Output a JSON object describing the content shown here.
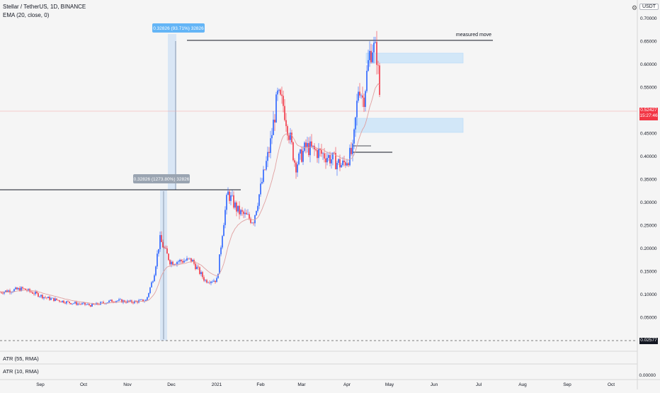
{
  "header": {
    "symbol_line": "Stellar / TetherUS, 1D, BINANCE",
    "ema_line": "EMA (20, close, 0)"
  },
  "toolbar": {
    "currency": "USDT",
    "settings_icon": "gear-icon"
  },
  "price_axis": {
    "ticks": [
      "0.70000",
      "0.65000",
      "0.60000",
      "0.55000",
      "0.50000",
      "0.45000",
      "0.40000",
      "0.35000",
      "0.30000",
      "0.25000",
      "0.20000",
      "0.15000",
      "0.10000",
      "0.05000"
    ],
    "last_price": "0.52427",
    "countdown": "15:27:46",
    "low_marker": "0.02577",
    "atr_zero": "0.00000"
  },
  "time_axis": {
    "labels": [
      "Sep",
      "Oct",
      "Nov",
      "Dec",
      "2021",
      "Feb",
      "Mar",
      "Apr",
      "May",
      "Jun",
      "Jul",
      "Aug",
      "Sep",
      "Oct"
    ]
  },
  "annotations": {
    "measure_top": "0.32826 (93.71%) 32826",
    "measure_bottom": "0.32826 (1273.80%) 32826",
    "measured_move": "measured move"
  },
  "indicators": [
    "ATR (55, RMA)",
    "ATR (10, RMA)"
  ],
  "colors": {
    "up": "#2962ff",
    "down": "#f23645",
    "ema": "#e0a0a0",
    "zone": "#bbdefb",
    "measure": "#d6e4f5"
  },
  "chart_data": {
    "type": "candlestick",
    "title": "Stellar / TetherUS, 1D, BINANCE",
    "ylim": [
      0.0,
      0.72
    ],
    "xlabels": [
      "Sep",
      "Oct",
      "Nov",
      "Dec",
      "2021",
      "Feb",
      "Mar",
      "Apr",
      "May",
      "Jun",
      "Jul",
      "Aug",
      "Sep",
      "Oct"
    ],
    "close_path": [
      [
        "2020-08-10",
        0.105
      ],
      [
        "2020-08-25",
        0.112
      ],
      [
        "2020-09-10",
        0.092
      ],
      [
        "2020-09-25",
        0.082
      ],
      [
        "2020-10-10",
        0.076
      ],
      [
        "2020-10-25",
        0.087
      ],
      [
        "2020-11-05",
        0.083
      ],
      [
        "2020-11-15",
        0.087
      ],
      [
        "2020-11-20",
        0.14
      ],
      [
        "2020-11-24",
        0.22
      ],
      [
        "2020-12-01",
        0.17
      ],
      [
        "2020-12-15",
        0.175
      ],
      [
        "2020-12-24",
        0.13
      ],
      [
        "2021-01-01",
        0.131
      ],
      [
        "2021-01-05",
        0.25
      ],
      [
        "2021-01-08",
        0.32
      ],
      [
        "2021-01-15",
        0.28
      ],
      [
        "2021-01-25",
        0.26
      ],
      [
        "2021-02-05",
        0.42
      ],
      [
        "2021-02-10",
        0.53
      ],
      [
        "2021-02-14",
        0.51
      ],
      [
        "2021-02-22",
        0.38
      ],
      [
        "2021-03-01",
        0.42
      ],
      [
        "2021-03-15",
        0.4
      ],
      [
        "2021-03-25",
        0.38
      ],
      [
        "2021-04-01",
        0.41
      ],
      [
        "2021-04-05",
        0.56
      ],
      [
        "2021-04-08",
        0.52
      ],
      [
        "2021-04-12",
        0.62
      ],
      [
        "2021-04-14",
        0.64
      ],
      [
        "2021-04-17",
        0.62
      ],
      [
        "2021-04-19",
        0.524
      ]
    ],
    "last_price": 0.52427,
    "supply_zone": [
      0.632,
      0.655
    ],
    "demand_zone": [
      0.478,
      0.506
    ],
    "measured_move_level": 0.68,
    "previous_high_level": 0.353,
    "breakout_level": 0.433,
    "low_level": 0.02577,
    "move_1_pct": 1273.8,
    "move_2_pct": 93.71
  }
}
